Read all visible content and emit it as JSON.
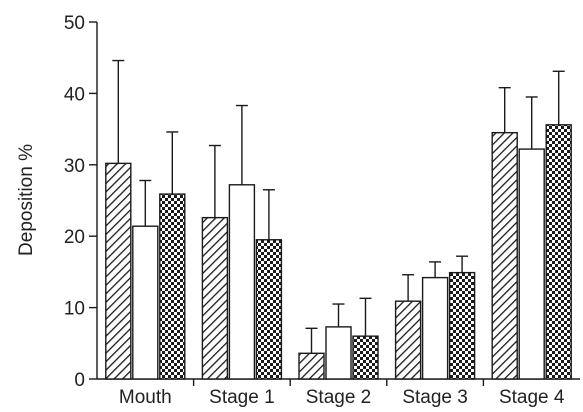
{
  "chart_data": {
    "type": "bar",
    "ylabel": "Deposition  %",
    "xlabel": "",
    "ylim": [
      0,
      50
    ],
    "yticks": [
      0,
      10,
      20,
      30,
      40,
      50
    ],
    "categories": [
      "Mouth",
      "Stage 1",
      "Stage 2",
      "Stage 3",
      "Stage 4"
    ],
    "grid": false,
    "legend": "none",
    "series": [
      {
        "pattern": "diagonal-hatch",
        "values": [
          30.2,
          22.6,
          3.6,
          10.9,
          34.5
        ],
        "errors": [
          14.4,
          10.1,
          3.5,
          3.7,
          6.3
        ]
      },
      {
        "pattern": "plain-white",
        "values": [
          21.4,
          27.2,
          7.3,
          14.2,
          32.2
        ],
        "errors": [
          6.4,
          11.1,
          3.2,
          2.2,
          7.3
        ]
      },
      {
        "pattern": "checkered",
        "values": [
          25.9,
          19.5,
          6.0,
          14.9,
          35.6
        ],
        "errors": [
          8.7,
          7.0,
          5.3,
          2.3,
          7.5
        ]
      }
    ],
    "colors": {
      "stroke": "#1a1a1a",
      "fill": "#ffffff"
    }
  }
}
